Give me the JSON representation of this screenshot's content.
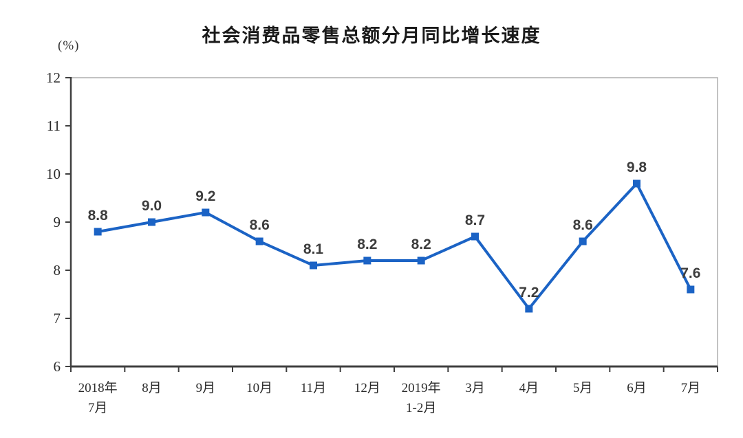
{
  "header": {
    "title": "社会消费品零售总额分月同比增长速度",
    "unit_label": "(%)"
  },
  "chart_data": {
    "type": "line",
    "title": "社会消费品零售总额分月同比增长速度",
    "unit": "(%)",
    "categories": [
      [
        "2018年",
        "7月"
      ],
      [
        "8月"
      ],
      [
        "9月"
      ],
      [
        "10月"
      ],
      [
        "11月"
      ],
      [
        "12月"
      ],
      [
        "2019年",
        "1-2月"
      ],
      [
        "3月"
      ],
      [
        "4月"
      ],
      [
        "5月"
      ],
      [
        "6月"
      ],
      [
        "7月"
      ]
    ],
    "values": [
      8.8,
      9.0,
      9.2,
      8.6,
      8.1,
      8.2,
      8.2,
      8.7,
      7.2,
      8.6,
      9.8,
      7.6
    ],
    "data_labels": [
      "8.8",
      "9.0",
      "9.2",
      "8.6",
      "8.1",
      "8.2",
      "8.2",
      "8.7",
      "7.2",
      "8.6",
      "9.8",
      "7.6"
    ],
    "ylim": [
      6,
      12
    ],
    "yticks": [
      6,
      7,
      8,
      9,
      10,
      11,
      12
    ],
    "grid": false,
    "legend": "none",
    "marker": "square",
    "colors": {
      "line": "#1b63c5",
      "marker": "#1b63c5",
      "data_label": "#3d3d3d",
      "axis_line": "#3f3f3f",
      "plot_border": "#b3b3b3",
      "tick_label": "#2b2b2b",
      "title": "#1a1a1a",
      "background": "#ffffff"
    }
  }
}
